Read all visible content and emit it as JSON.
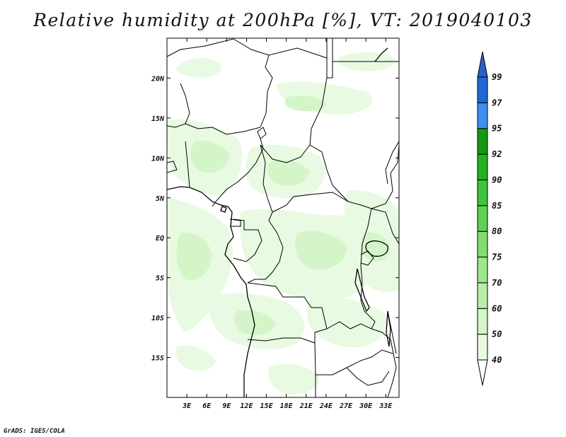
{
  "title": "Relative humidity at 200hPa [%], VT: 2019040103",
  "credit": "GrADS: IGES/COLA",
  "chart_data": {
    "type": "heatmap",
    "variable": "Relative humidity",
    "level": "200hPa",
    "units": "%",
    "valid_time": "2019040103",
    "lon_range": [
      0,
      35
    ],
    "lat_range": [
      -20,
      25
    ],
    "x_ticks": [
      "3E",
      "6E",
      "9E",
      "12E",
      "15E",
      "18E",
      "21E",
      "24E",
      "27E",
      "30E",
      "33E"
    ],
    "y_ticks": [
      "20N",
      "15N",
      "10N",
      "5N",
      "EQ",
      "5S",
      "10S",
      "15S"
    ],
    "x_tick_values": [
      3,
      6,
      9,
      12,
      15,
      18,
      21,
      24,
      27,
      30,
      33
    ],
    "y_tick_values": [
      20,
      15,
      10,
      5,
      0,
      -5,
      -10,
      -15
    ],
    "colorbar": {
      "levels": [
        "40",
        "50",
        "60",
        "70",
        "75",
        "80",
        "85",
        "90",
        "92",
        "95",
        "97",
        "99"
      ],
      "colors": [
        "#e8fae2",
        "#d4f5c8",
        "#b8eea8",
        "#9ee68a",
        "#82dd6e",
        "#5fd253",
        "#3fc43c",
        "#23b020",
        "#139a12",
        "#3f8ff0",
        "#2068d8",
        "#1c4fba"
      ],
      "under_color": "#ffffff",
      "over_color": "#2b5fc4"
    }
  }
}
